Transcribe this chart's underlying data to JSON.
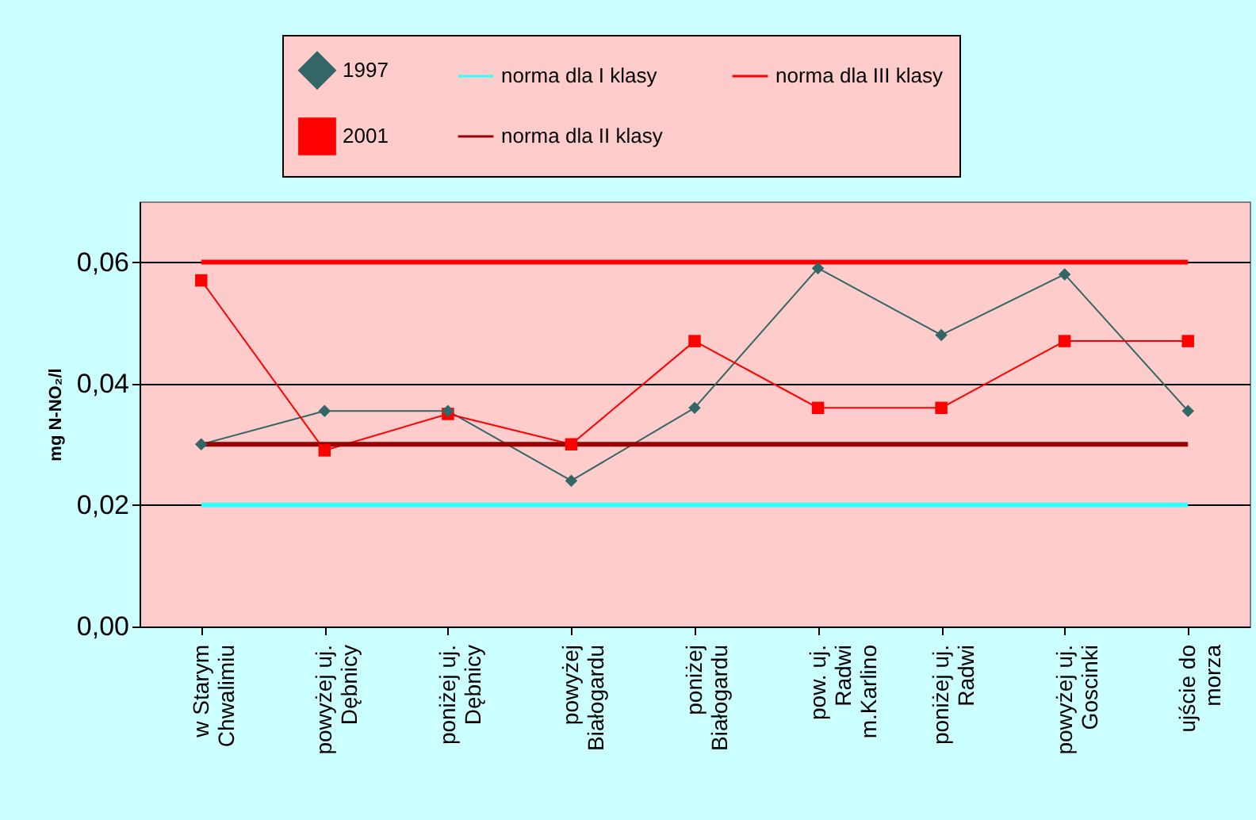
{
  "chart_data": {
    "type": "line",
    "ylabel": "mg N-NO₂/l",
    "categories": [
      "w Starym Chwalimiu",
      "powyżej uj. Dębnicy",
      "poniżej uj. Dębnicy",
      "powyżej Białogardu",
      "poniżej Białogardu",
      "pow. uj. Radwi m.Karlino",
      "poniżej uj. Radwi",
      "powyżej uj. Goscinki",
      "ujście do morza"
    ],
    "series": [
      {
        "name": "1997",
        "color": "#336666",
        "marker": "diamond",
        "values": [
          0.03,
          0.0355,
          0.0355,
          0.024,
          0.036,
          0.059,
          0.048,
          0.058,
          0.0355
        ]
      },
      {
        "name": "2001",
        "color": "#ff0000",
        "marker": "square",
        "values": [
          0.057,
          0.029,
          0.035,
          0.03,
          0.047,
          0.036,
          0.036,
          0.047,
          0.047
        ]
      },
      {
        "name": "norma dla I klasy",
        "color": "#33ffff",
        "marker": "none",
        "values": [
          0.02,
          0.02,
          0.02,
          0.02,
          0.02,
          0.02,
          0.02,
          0.02,
          0.02
        ]
      },
      {
        "name": "norma dla II klasy",
        "color": "#990000",
        "marker": "none",
        "values": [
          0.03,
          0.03,
          0.03,
          0.03,
          0.03,
          0.03,
          0.03,
          0.03,
          0.03
        ]
      },
      {
        "name": "norma dla III klasy",
        "color": "#ff0000",
        "marker": "none",
        "values": [
          0.06,
          0.06,
          0.06,
          0.06,
          0.06,
          0.06,
          0.06,
          0.06,
          0.06
        ]
      }
    ],
    "ylim": [
      0,
      0.07
    ],
    "yticks": [
      {
        "value": 0,
        "label": "0,00"
      },
      {
        "value": 0.02,
        "label": "0,02"
      },
      {
        "value": 0.04,
        "label": "0,04"
      },
      {
        "value": 0.06,
        "label": "0,06"
      }
    ],
    "grid": "y",
    "legend": "top"
  }
}
